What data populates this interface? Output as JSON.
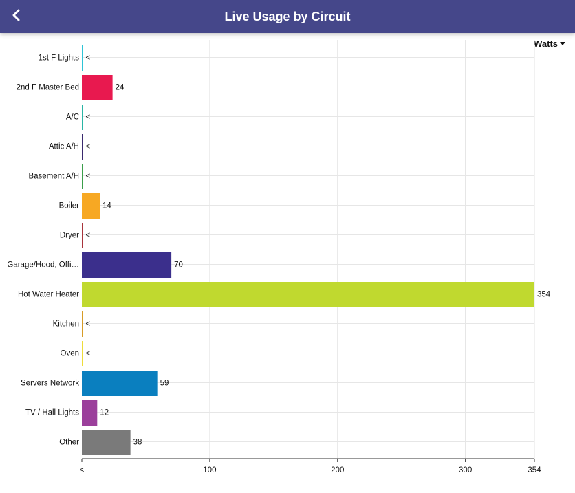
{
  "header": {
    "title": "Live Usage by Circuit",
    "back_icon": "chevron-left-icon",
    "background": "#45478a"
  },
  "unit_selector": {
    "label": "Watts",
    "icon": "caret-down-icon"
  },
  "chart_data": {
    "type": "bar",
    "orientation": "horizontal",
    "title": "",
    "xlabel": "",
    "ylabel": "",
    "xlim": [
      0,
      354
    ],
    "x_ticks": [
      {
        "value": 0,
        "label": "<"
      },
      {
        "value": 100,
        "label": "100"
      },
      {
        "value": 200,
        "label": "200"
      },
      {
        "value": 300,
        "label": "300"
      },
      {
        "value": 354,
        "label": "354"
      }
    ],
    "grid": true,
    "legend": "none",
    "small_value_label": "<",
    "categories": [
      "1st F Lights",
      "2nd F Master Bed",
      "A/C",
      "Attic A/H",
      "Basement A/H",
      "Boiler",
      "Dryer",
      "Garage/Hood, Offi…",
      "Hot Water Heater",
      "Kitchen",
      "Oven",
      "Servers Network",
      "TV / Hall Lights",
      "Other"
    ],
    "values": [
      0,
      24,
      0,
      0,
      0,
      14,
      0,
      70,
      354,
      0,
      0,
      59,
      12,
      38
    ],
    "value_labels": [
      "<",
      "24",
      "<",
      "<",
      "<",
      "14",
      "<",
      "70",
      "354",
      "<",
      "<",
      "59",
      "12",
      "38"
    ],
    "colors": [
      "#2ec4d6",
      "#e8194f",
      "#2ab5a5",
      "#3a2a6e",
      "#3b9e4a",
      "#f7a823",
      "#a8343c",
      "#3b2f8c",
      "#c0d92f",
      "#d79c27",
      "#eedc3a",
      "#0a7fbf",
      "#9b3f9b",
      "#7a7a7a"
    ]
  }
}
